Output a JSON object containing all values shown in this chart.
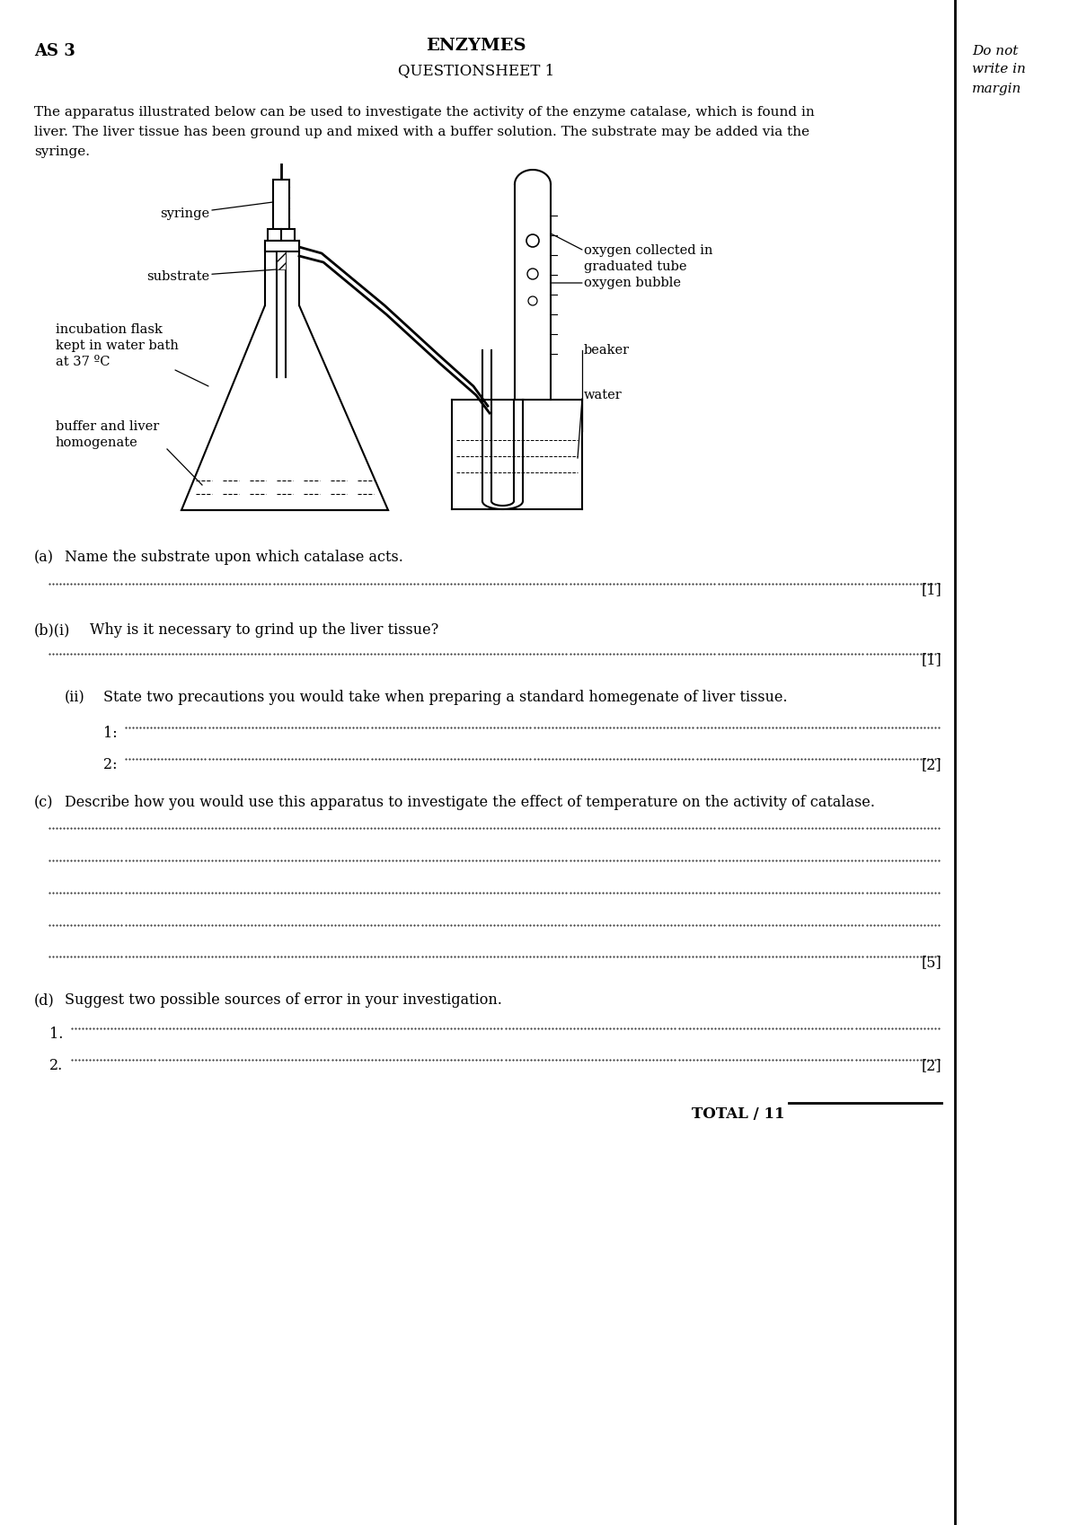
{
  "title": "ENZYMES",
  "subtitle": "QUESTIONSHEET 1",
  "header_left": "AS 3",
  "margin_text": [
    "Do not",
    "write in",
    "margin"
  ],
  "intro_text": "The apparatus illustrated below can be used to investigate the activity of the enzyme catalase, which is found in liver. The liver tissue has been ground up and mixed with a buffer solution. The substrate may be added via the syringe.",
  "bg_color": "#ffffff",
  "text_color": "#000000"
}
